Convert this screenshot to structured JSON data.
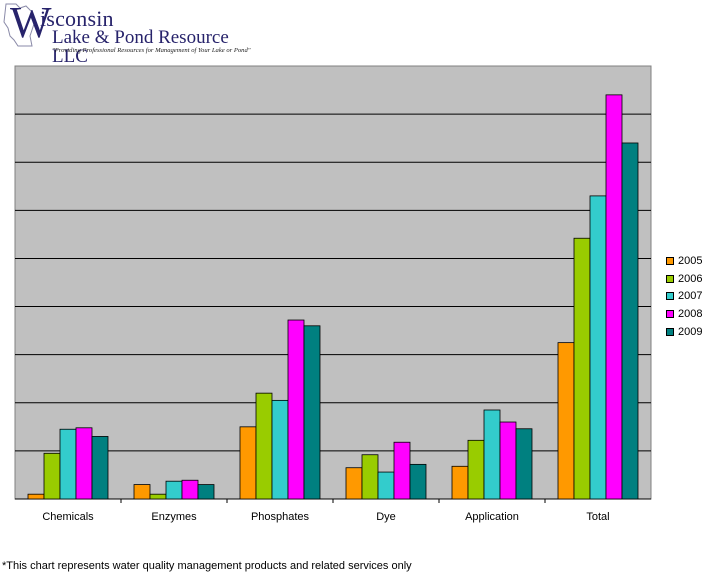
{
  "logo": {
    "initial": "W",
    "name_rest": "isconsin",
    "subtitle": "Lake & Pond Resource LLC",
    "tagline": "\"Providing Professional Resources for Management of Your Lake or Pond\""
  },
  "chart_data": {
    "type": "bar",
    "categories": [
      "Chemicals",
      "Enzymes",
      "Phosphates",
      "Dye",
      "Application",
      "Total"
    ],
    "series": [
      {
        "name": "2005",
        "color": "#ff9900",
        "values": [
          0.1,
          0.3,
          1.5,
          0.65,
          0.68,
          3.25
        ]
      },
      {
        "name": "2006",
        "color": "#99cc00",
        "values": [
          0.95,
          0.1,
          2.2,
          0.92,
          1.22,
          5.42
        ]
      },
      {
        "name": "2007",
        "color": "#33cccc",
        "values": [
          1.45,
          0.37,
          2.05,
          0.56,
          1.85,
          6.3
        ]
      },
      {
        "name": "2008",
        "color": "#ff00ff",
        "values": [
          1.48,
          0.39,
          3.72,
          1.18,
          1.6,
          8.4
        ]
      },
      {
        "name": "2009",
        "color": "#008080",
        "values": [
          1.3,
          0.3,
          3.6,
          0.72,
          1.46,
          7.4
        ]
      }
    ],
    "ylim": [
      0,
      9
    ],
    "grid": true,
    "legend_position": "right",
    "plot_background": "#c0c0c0"
  },
  "footnote": "*This chart represents water quality management products and related services only"
}
